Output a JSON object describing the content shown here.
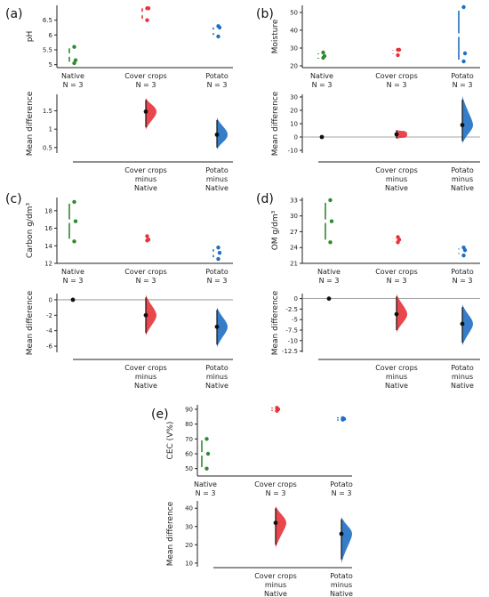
{
  "colors": {
    "native": "#2e8b2e",
    "cover": "#e8333a",
    "potato": "#1f6fc2",
    "zero": "#555555",
    "dot": "#111111"
  },
  "chart_data": [
    {
      "panel": "(a)",
      "type": "scatter",
      "ylabel": "pH",
      "raw": {
        "ylim": [
          4.9,
          7.0
        ],
        "ticks": [
          5.0,
          5.5,
          6.0,
          6.5
        ],
        "groups": [
          {
            "line1": "Native",
            "line2": "N = 3",
            "values": [
              5.05,
              5.15,
              5.6
            ],
            "lo": 5.1,
            "hi": 5.55
          },
          {
            "line1": "Cover crops",
            "line2": "N = 3",
            "values": [
              6.5,
              6.9,
              6.9
            ],
            "lo": 6.55,
            "hi": 6.9
          },
          {
            "line1": "Potato",
            "line2": "N = 3",
            "values": [
              5.95,
              6.25,
              6.3
            ],
            "lo": 6.0,
            "hi": 6.25
          }
        ]
      },
      "diff": {
        "ylabel": "Mean difference",
        "ylim": [
          0.35,
          1.95
        ],
        "ticks": [
          0.5,
          1.0,
          1.5
        ],
        "groups": [
          {
            "line1": "Cover crops",
            "line2": "minus",
            "line3": "Native",
            "mean": 1.48,
            "ci": [
              1.05,
              1.8
            ]
          },
          {
            "line1": "Potato",
            "line2": "minus",
            "line3": "Native",
            "mean": 0.85,
            "ci": [
              0.5,
              1.25
            ]
          }
        ]
      }
    },
    {
      "panel": "(b)",
      "type": "scatter",
      "ylabel": "Moisture",
      "raw": {
        "ylim": [
          19,
          54
        ],
        "ticks": [
          20,
          30,
          40,
          50
        ],
        "groups": [
          {
            "line1": "Native",
            "line2": "N = 3",
            "values": [
              24.5,
              25.5,
              27.5
            ],
            "lo": 24,
            "hi": 27
          },
          {
            "line1": "Cover crops",
            "line2": "N = 3",
            "values": [
              26,
              29,
              29
            ],
            "lo": 26.5,
            "hi": 29
          },
          {
            "line1": "Potato",
            "line2": "N = 3",
            "values": [
              22.5,
              27,
              53
            ],
            "lo": 23.5,
            "hi": 51
          }
        ]
      },
      "diff": {
        "ylabel": "Mean difference",
        "ylim": [
          -12,
          32
        ],
        "ticks": [
          -10,
          0,
          10,
          20,
          30
        ],
        "groups": [
          {
            "line1": "Native",
            "line2": "",
            "line3": "",
            "mean": 0,
            "ci": [
              0,
              0
            ],
            "ref": true
          },
          {
            "line1": "Cover crops",
            "line2": "minus",
            "line3": "Native",
            "mean": 2,
            "ci": [
              -1,
              5
            ]
          },
          {
            "line1": "Potato",
            "line2": "minus",
            "line3": "Native",
            "mean": 9,
            "ci": [
              -3,
              28
            ]
          }
        ]
      }
    },
    {
      "panel": "(c)",
      "type": "scatter",
      "ylabel": "Carbon g/dm³",
      "raw": {
        "ylim": [
          12,
          19.5
        ],
        "ticks": [
          12,
          14,
          16,
          18
        ],
        "groups": [
          {
            "line1": "Native",
            "line2": "N = 3",
            "values": [
              14.5,
              16.8,
              19.0
            ],
            "lo": 14.8,
            "hi": 18.8
          },
          {
            "line1": "Cover crops",
            "line2": "N = 3",
            "values": [
              14.6,
              14.7,
              15.1
            ],
            "lo": 14.6,
            "hi": 15.0
          },
          {
            "line1": "Potato",
            "line2": "N = 3",
            "values": [
              12.5,
              13.2,
              13.8
            ],
            "lo": 12.7,
            "hi": 13.6
          }
        ]
      },
      "diff": {
        "ylabel": "Mean difference",
        "ylim": [
          -6.8,
          0.8
        ],
        "ticks": [
          0,
          -2,
          -4,
          -6
        ],
        "groups": [
          {
            "line1": "Native",
            "line2": "",
            "line3": "",
            "mean": 0,
            "ci": [
              0,
              0
            ],
            "ref": true
          },
          {
            "line1": "Cover crops",
            "line2": "minus",
            "line3": "Native",
            "mean": -2.0,
            "ci": [
              -4.3,
              0.3
            ]
          },
          {
            "line1": "Potato",
            "line2": "minus",
            "line3": "Native",
            "mean": -3.5,
            "ci": [
              -5.8,
              -1.3
            ]
          }
        ]
      }
    },
    {
      "panel": "(d)",
      "type": "scatter",
      "ylabel": "OM g/dm³",
      "raw": {
        "ylim": [
          21,
          33.5
        ],
        "ticks": [
          21,
          24,
          27,
          30,
          33
        ],
        "groups": [
          {
            "line1": "Native",
            "line2": "N = 3",
            "values": [
              25,
              29,
              33
            ],
            "lo": 25.5,
            "hi": 32.5
          },
          {
            "line1": "Cover crops",
            "line2": "N = 3",
            "values": [
              25,
              25.5,
              26
            ],
            "lo": 25.2,
            "hi": 25.8
          },
          {
            "line1": "Potato",
            "line2": "N = 3",
            "values": [
              22.5,
              23.5,
              24
            ],
            "lo": 22.8,
            "hi": 23.8
          }
        ]
      },
      "diff": {
        "ylabel": "Mean difference",
        "ylim": [
          -12.8,
          1.2
        ],
        "ticks": [
          0.0,
          -2.5,
          -5.0,
          -7.5,
          -10.0,
          -12.5
        ],
        "groups": [
          {
            "line1": "Native",
            "line2": "",
            "line3": "",
            "mean": 0,
            "ci": [
              0,
              0
            ],
            "ref": true
          },
          {
            "line1": "Cover crops",
            "line2": "minus",
            "line3": "Native",
            "mean": -3.7,
            "ci": [
              -7.5,
              0.5
            ]
          },
          {
            "line1": "Potato",
            "line2": "minus",
            "line3": "Native",
            "mean": -6.0,
            "ci": [
              -10.5,
              -2
            ]
          }
        ]
      }
    },
    {
      "panel": "(e)",
      "type": "scatter",
      "ylabel": "CEC (V%)",
      "raw": {
        "ylim": [
          45,
          93
        ],
        "ticks": [
          50,
          60,
          70,
          80,
          90
        ],
        "groups": [
          {
            "line1": "Native",
            "line2": "N = 3",
            "values": [
              50,
              60,
              70
            ],
            "lo": 51,
            "hi": 69
          },
          {
            "line1": "Cover crops",
            "line2": "N = 3",
            "values": [
              89,
              90,
              91
            ],
            "lo": 89.5,
            "hi": 90.5
          },
          {
            "line1": "Potato",
            "line2": "N = 3",
            "values": [
              83,
              83.5,
              84
            ],
            "lo": 83.2,
            "hi": 83.8
          }
        ]
      },
      "diff": {
        "ylabel": "Mean difference",
        "ylim": [
          8,
          44
        ],
        "ticks": [
          10,
          20,
          30,
          40
        ],
        "groups": [
          {
            "line1": "Cover crops",
            "line2": "minus",
            "line3": "Native",
            "mean": 32,
            "ci": [
              20,
              40
            ]
          },
          {
            "line1": "Potato",
            "line2": "minus",
            "line3": "Native",
            "mean": 26,
            "ci": [
              12,
              34
            ]
          }
        ]
      }
    }
  ]
}
